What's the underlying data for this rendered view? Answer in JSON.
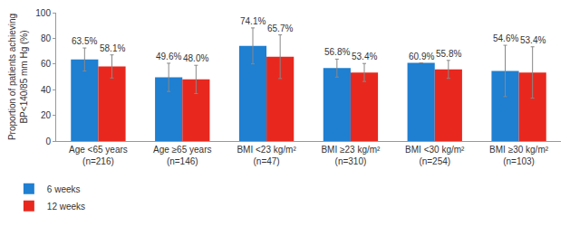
{
  "chart_data": {
    "type": "bar",
    "y_label": "Proportion of patients achieving\nBP<140/85 mm Hg (%)",
    "categories": [
      "Age <65 years\n(n=216)",
      "Age ≥65 years\n(n=146)",
      "BMI <23 kg/m²\n(n=47)",
      "BMI ≥23 kg/m²\n(n=310)",
      "BMI <30 kg/m²\n(n=254)",
      "BMI ≥30 kg/m²\n(n=103)"
    ],
    "series": [
      {
        "name": "6 weeks",
        "color": "#1f7fd1",
        "values": [
          63.5,
          49.6,
          74.1,
          56.8,
          60.9,
          54.6
        ],
        "value_labels": [
          "63.5%",
          "49.6%",
          "74.1%",
          "56.8%",
          "60.9%",
          "54.6%"
        ],
        "errors": [
          9,
          11,
          14,
          7,
          0,
          20
        ]
      },
      {
        "name": "12 weeks",
        "color": "#e8281e",
        "values": [
          58.1,
          48.0,
          65.7,
          53.4,
          55.8,
          53.4
        ],
        "value_labels": [
          "58.1%",
          "48.0%",
          "65.7%",
          "53.4%",
          "55.8%",
          "53.4%"
        ],
        "errors": [
          9,
          11,
          17,
          7,
          7,
          20
        ]
      }
    ],
    "ylim": [
      0,
      100
    ],
    "yticks": [
      0,
      20,
      40,
      60,
      80,
      100
    ],
    "grid": false,
    "legend": "bottom-left",
    "data_labels": true
  }
}
